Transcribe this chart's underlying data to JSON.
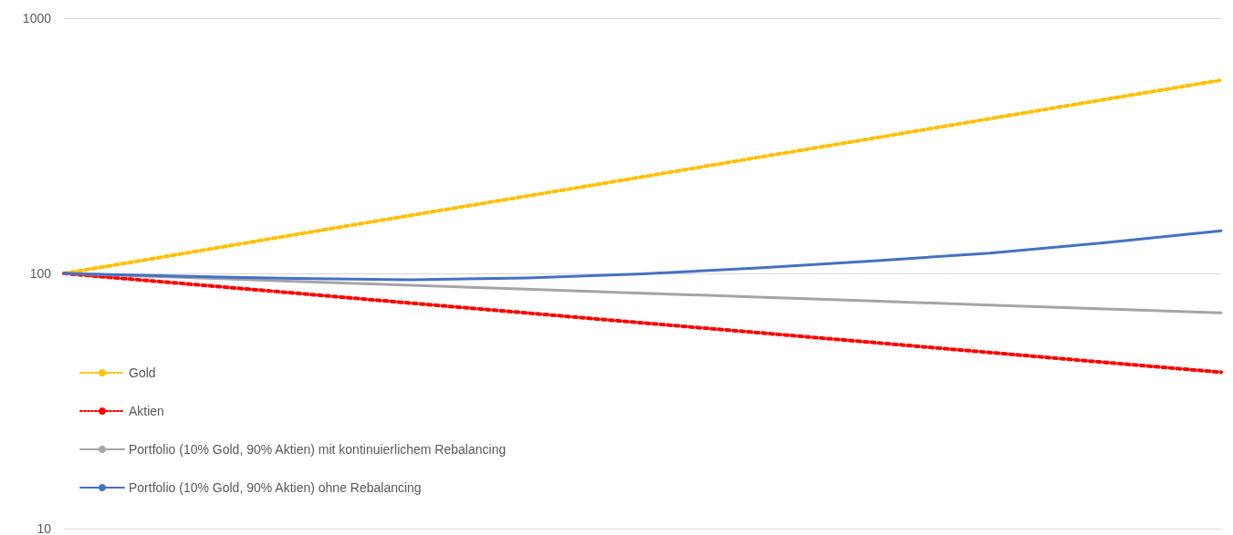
{
  "chart_data": {
    "type": "line",
    "categories": [
      null,
      null,
      null,
      null,
      null,
      null,
      null,
      null,
      null,
      null,
      null
    ],
    "series": [
      {
        "name": "Gold",
        "color": "#ffc000",
        "line_style": "dotted",
        "values": [
          100,
          119,
          142,
          169,
          201,
          239,
          285,
          339,
          404,
          481,
          572
        ]
      },
      {
        "name": "Aktien",
        "color": "#ff0000",
        "line_style": "dotted",
        "values": [
          100,
          91.5,
          83.7,
          76.5,
          70,
          64,
          58.6,
          53.6,
          49,
          44.8,
          41
        ]
      },
      {
        "name": "Portfolio (10% Gold, 90% Aktien) mit kontinuierlichem Rebalancing",
        "color": "#a5a5a5",
        "line_style": "solid",
        "values": [
          100,
          96.5,
          93.1,
          89.9,
          86.7,
          83.7,
          80.8,
          77.9,
          75.2,
          72.6,
          70
        ]
      },
      {
        "name": "Portfolio (10% Gold, 90% Aktien) ohne Rebalancing",
        "color": "#4472c4",
        "line_style": "solid",
        "values": [
          100,
          97.5,
          95.5,
          94.5,
          96,
          99.5,
          105,
          112,
          120,
          132,
          147
        ]
      }
    ],
    "log": "y",
    "ylim": [
      10,
      1000
    ],
    "yticks": [
      10,
      100,
      1000
    ],
    "grid": "y",
    "legend": "bottom left",
    "marker": "none",
    "tick_labels": "y"
  }
}
